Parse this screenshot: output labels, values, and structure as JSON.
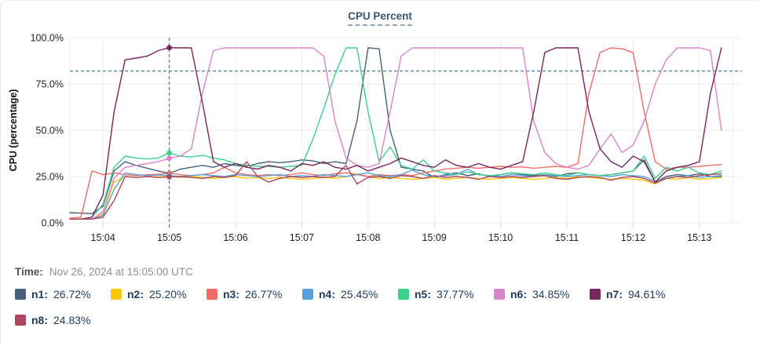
{
  "card": {
    "title": "CPU Percent"
  },
  "time_row": {
    "label": "Time:",
    "value": "Nov 26, 2024 at 15:05:00 UTC"
  },
  "legend": [
    {
      "id": "n1",
      "label": "n1:",
      "value": "26.72%",
      "color": "#48607c"
    },
    {
      "id": "n2",
      "label": "n2:",
      "value": "25.20%",
      "color": "#fbc70f"
    },
    {
      "id": "n3",
      "label": "n3:",
      "value": "26.77%",
      "color": "#ee6e67"
    },
    {
      "id": "n4",
      "label": "n4:",
      "value": "25.45%",
      "color": "#57a0d8"
    },
    {
      "id": "n5",
      "label": "n5:",
      "value": "37.77%",
      "color": "#3ecf8e"
    },
    {
      "id": "n6",
      "label": "n6:",
      "value": "34.85%",
      "color": "#d685ca"
    },
    {
      "id": "n7",
      "label": "n7:",
      "value": "94.61%",
      "color": "#76275c"
    },
    {
      "id": "n8",
      "label": "n8:",
      "value": "24.83%",
      "color": "#ab4860"
    }
  ],
  "colors": {
    "grid": "#ececec",
    "tick": "#d8d8d8",
    "tick_text": "#1f1f1f",
    "dashed": "#4d7d8f"
  },
  "chart_data": {
    "type": "line",
    "title": "CPU Percent",
    "xlabel": "",
    "ylabel": "CPU (percentage)",
    "x_unit": "seconds relative to 15:04:00, samples every 10s",
    "ylim": [
      0,
      100
    ],
    "xlim": [
      -30,
      570
    ],
    "grid": true,
    "threshold_y": 82,
    "crosshair": {
      "t": 60,
      "time": "15:05:00"
    },
    "yticks": [
      {
        "v": 100,
        "label": "100.0%"
      },
      {
        "v": 75,
        "label": "75.0%"
      },
      {
        "v": 50,
        "label": "50.0%"
      },
      {
        "v": 25,
        "label": "25.0%"
      },
      {
        "v": 0,
        "label": "0.0%"
      }
    ],
    "xticks": [
      {
        "t": 0,
        "label": "15:04"
      },
      {
        "t": 60,
        "label": "15:05"
      },
      {
        "t": 120,
        "label": "15:06"
      },
      {
        "t": 180,
        "label": "15:07"
      },
      {
        "t": 240,
        "label": "15:08"
      },
      {
        "t": 300,
        "label": "15:09"
      },
      {
        "t": 360,
        "label": "15:10"
      },
      {
        "t": 420,
        "label": "15:11"
      },
      {
        "t": 480,
        "label": "15:12"
      },
      {
        "t": 540,
        "label": "15:13"
      }
    ],
    "x": [
      -30,
      -20,
      -10,
      0,
      10,
      20,
      30,
      40,
      50,
      60,
      70,
      80,
      90,
      100,
      110,
      120,
      130,
      140,
      150,
      160,
      170,
      180,
      190,
      200,
      210,
      220,
      230,
      240,
      250,
      260,
      270,
      280,
      290,
      300,
      310,
      320,
      330,
      340,
      350,
      360,
      370,
      380,
      390,
      400,
      410,
      420,
      430,
      440,
      450,
      460,
      470,
      480,
      490,
      500,
      510,
      520,
      530,
      540,
      550,
      560
    ],
    "series": [
      {
        "name": "n1",
        "color": "#48607c",
        "values": [
          5.5,
          5.2,
          5,
          9,
          28,
          33,
          31,
          29.5,
          28,
          26.72,
          29,
          30,
          31,
          30,
          32,
          31,
          30.5,
          32,
          33,
          32.5,
          33,
          34,
          33.5,
          32,
          33,
          32,
          55,
          94.5,
          94,
          50,
          30,
          29,
          28,
          24.5,
          26,
          27,
          25.5,
          26.5,
          25,
          26,
          27,
          26,
          25.5,
          26,
          25,
          26.5,
          27,
          26,
          25.5,
          26,
          27,
          28,
          34,
          22,
          25,
          26,
          25.5,
          26.5,
          25,
          25
        ]
      },
      {
        "name": "n2",
        "color": "#fbc70f",
        "values": [
          2,
          2,
          2,
          5,
          22,
          25,
          24.5,
          25,
          24.8,
          25.2,
          24.5,
          25,
          24.5,
          24,
          24.5,
          25,
          24,
          24.5,
          24,
          24.5,
          24,
          23.5,
          24,
          24.5,
          24,
          25,
          26.5,
          25,
          24,
          24.5,
          24,
          23.5,
          24,
          24.5,
          23.5,
          24,
          24.5,
          24,
          23.5,
          24,
          24.5,
          24,
          23.5,
          24,
          24.5,
          24,
          25,
          24.5,
          24,
          23.5,
          24,
          23.5,
          23,
          21,
          24,
          23.5,
          24.5,
          23.5,
          24,
          24.5
        ]
      },
      {
        "name": "n3",
        "color": "#ee6e67",
        "values": [
          2.5,
          3,
          28,
          26,
          27,
          26,
          25.5,
          26,
          26.2,
          26.77,
          26,
          25.5,
          26,
          27,
          30,
          27,
          26,
          25.5,
          26,
          25.5,
          26,
          27,
          26,
          25.5,
          26.5,
          27,
          26,
          25,
          26,
          25.5,
          26,
          25.5,
          27,
          28,
          29,
          29.5,
          30,
          29.5,
          30,
          30.5,
          30,
          30.2,
          29.5,
          30,
          30.5,
          30,
          32,
          70,
          92,
          94.5,
          94,
          92,
          60,
          33,
          29,
          30,
          30,
          30.5,
          31,
          31.5
        ]
      },
      {
        "name": "n4",
        "color": "#57a0d8",
        "values": [
          2,
          2,
          2,
          4,
          18,
          27,
          26,
          25.5,
          25.8,
          25.45,
          25,
          25.5,
          26,
          25.5,
          25,
          26,
          25.5,
          25,
          25.5,
          26,
          25,
          25.5,
          25,
          26,
          25.5,
          25,
          26,
          27,
          25.5,
          25,
          26,
          28.5,
          26,
          25,
          25.5,
          26,
          29,
          26,
          25.5,
          25,
          26,
          25.5,
          25,
          26,
          25.5,
          25,
          25.5,
          26,
          25.5,
          25,
          26,
          25.5,
          25,
          22.5,
          24,
          25,
          25.5,
          24.5,
          25,
          25.5
        ]
      },
      {
        "name": "n5",
        "color": "#3ecf8e",
        "values": [
          2,
          2,
          3,
          10,
          30,
          36,
          35,
          34.5,
          35,
          37.77,
          36,
          35.5,
          36.5,
          35,
          34,
          32,
          31,
          30.5,
          30.5,
          30,
          30.5,
          31,
          45,
          62,
          80,
          94.5,
          94.5,
          60,
          33,
          41,
          31,
          29,
          34,
          28,
          27,
          26,
          27.5,
          26,
          25.5,
          26,
          27,
          26.5,
          26,
          27,
          26,
          25.5,
          27,
          26,
          25.5,
          26,
          27,
          28,
          36,
          24,
          30,
          28,
          30,
          27,
          26,
          28
        ]
      },
      {
        "name": "n6",
        "color": "#d685ca",
        "values": [
          2,
          2,
          2,
          6,
          24,
          30,
          31,
          32,
          33,
          34.85,
          36,
          40,
          70,
          93,
          94.5,
          94.5,
          94.5,
          94.5,
          94.5,
          94.5,
          94.5,
          94.5,
          94.5,
          90,
          55,
          35,
          31,
          30,
          32,
          60,
          90,
          94.5,
          94.5,
          94.5,
          94.5,
          94.5,
          94.5,
          94.5,
          94.5,
          94.5,
          94.5,
          94.5,
          55,
          38,
          32,
          30,
          29,
          31,
          40,
          48,
          38,
          42,
          55,
          75,
          88,
          94.5,
          94.5,
          94.5,
          93,
          50
        ]
      },
      {
        "name": "n7",
        "color": "#76275c",
        "values": [
          2,
          2,
          3,
          15,
          60,
          88,
          89,
          90,
          93,
          94.61,
          94.5,
          94.5,
          65,
          33,
          30,
          32,
          30,
          29,
          31,
          30,
          28,
          32,
          31,
          33,
          30,
          29,
          31,
          28,
          30,
          32,
          35,
          33,
          31,
          30,
          34,
          31,
          30,
          32,
          30,
          29,
          31,
          33,
          60,
          92,
          94.5,
          94.5,
          94.5,
          60,
          40,
          33,
          30,
          36,
          33,
          22,
          28,
          30,
          31,
          33,
          70,
          94.5
        ]
      },
      {
        "name": "n8",
        "color": "#ab4860",
        "values": [
          2,
          2,
          2,
          3,
          12,
          25,
          24.5,
          25,
          24.5,
          24.83,
          25,
          24.5,
          24,
          25,
          24.5,
          25.5,
          33,
          25,
          22,
          24,
          25,
          24.5,
          25,
          24.5,
          25,
          31,
          21,
          24.5,
          25,
          24,
          25.5,
          25,
          24,
          25.5,
          24.5,
          25,
          24.5,
          23.5,
          25,
          24.5,
          25,
          24.5,
          25,
          25.5,
          24,
          23.5,
          24.5,
          25,
          24.5,
          23,
          24.5,
          25,
          24,
          21.5,
          24,
          25,
          24.5,
          25.5,
          26,
          26.5
        ]
      }
    ]
  }
}
